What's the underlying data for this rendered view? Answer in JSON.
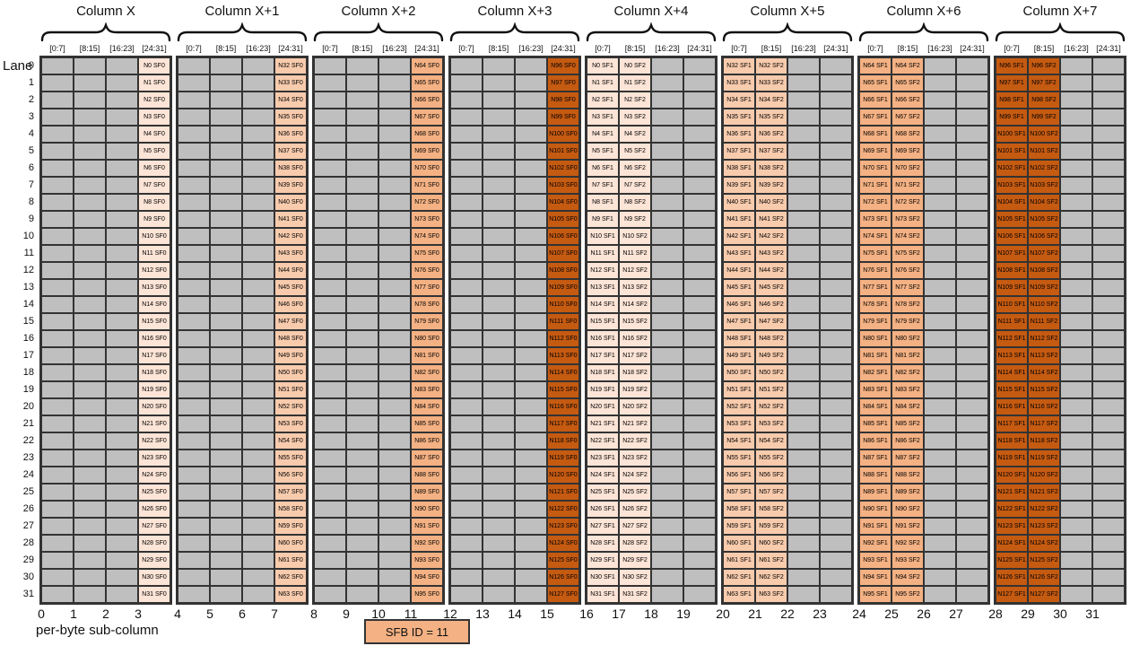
{
  "palette": {
    "cell_gray": "#BFBFBF",
    "border": "#333333",
    "tints": [
      "#FCE4D6",
      "#F8CBAD",
      "#F4B183",
      "#C55A11"
    ]
  },
  "lane_axis": {
    "label": "Lane",
    "values": [
      0,
      1,
      2,
      3,
      4,
      5,
      6,
      7,
      8,
      9,
      10,
      11,
      12,
      13,
      14,
      15,
      16,
      17,
      18,
      19,
      20,
      21,
      22,
      23,
      24,
      25,
      26,
      27,
      28,
      29,
      30,
      31
    ]
  },
  "bottom_axis": {
    "label": "per-byte sub-column",
    "values": [
      0,
      1,
      2,
      3,
      4,
      5,
      6,
      7,
      8,
      9,
      10,
      11,
      12,
      13,
      14,
      15,
      16,
      17,
      18,
      19,
      20,
      21,
      22,
      23,
      24,
      25,
      26,
      27,
      28,
      29,
      30,
      31
    ]
  },
  "legend": {
    "label": "SFB ID = 11",
    "tint": 2
  },
  "groups": [
    {
      "label": "Column X",
      "tint": 0,
      "subcols": [
        "[0:7]",
        "[8:15]",
        "[16:23]",
        "[24:31]"
      ],
      "filled": [
        {
          "subcol": 3,
          "cells": [
            "N0 SF0",
            "N1 SF0",
            "N2 SF0",
            "N3 SF0",
            "N4 SF0",
            "N5 SF0",
            "N6 SF0",
            "N7 SF0",
            "N8 SF0",
            "N9 SF0",
            "N10 SF0",
            "N11 SF0",
            "N12 SF0",
            "N13 SF0",
            "N14 SF0",
            "N15 SF0",
            "N16 SF0",
            "N17 SF0",
            "N18 SF0",
            "N19 SF0",
            "N20 SF0",
            "N21 SF0",
            "N22 SF0",
            "N23 SF0",
            "N24 SF0",
            "N25 SF0",
            "N26 SF0",
            "N27 SF0",
            "N28 SF0",
            "N29 SF0",
            "N30 SF0",
            "N31 SF0"
          ]
        }
      ]
    },
    {
      "label": "Column X+1",
      "tint": 1,
      "subcols": [
        "[0:7]",
        "[8:15]",
        "[16:23]",
        "[24:31]"
      ],
      "filled": [
        {
          "subcol": 3,
          "cells": [
            "N32 SF0",
            "N33 SF0",
            "N34 SF0",
            "N35 SF0",
            "N36 SF0",
            "N37 SF0",
            "N38 SF0",
            "N39 SF0",
            "N40 SF0",
            "N41 SF0",
            "N42 SF0",
            "N43 SF0",
            "N44 SF0",
            "N45 SF0",
            "N46 SF0",
            "N47 SF0",
            "N48 SF0",
            "N49 SF0",
            "N50 SF0",
            "N51 SF0",
            "N52 SF0",
            "N53 SF0",
            "N54 SF0",
            "N55 SF0",
            "N56 SF0",
            "N57 SF0",
            "N58 SF0",
            "N59 SF0",
            "N60 SF0",
            "N61 SF0",
            "N62 SF0",
            "N63 SF0"
          ]
        }
      ]
    },
    {
      "label": "Column X+2",
      "tint": 2,
      "subcols": [
        "[0:7]",
        "[8:15]",
        "[16:23]",
        "[24:31]"
      ],
      "filled": [
        {
          "subcol": 3,
          "cells": [
            "N64 SF0",
            "N65 SF0",
            "N66 SF0",
            "N67 SF0",
            "N68 SF0",
            "N69 SF0",
            "N70 SF0",
            "N71 SF0",
            "N72 SF0",
            "N73 SF0",
            "N74 SF0",
            "N75 SF0",
            "N76 SF0",
            "N77 SF0",
            "N78 SF0",
            "N79 SF0",
            "N80 SF0",
            "N81 SF0",
            "N82 SF0",
            "N83 SF0",
            "N84 SF0",
            "N85 SF0",
            "N86 SF0",
            "N87 SF0",
            "N88 SF0",
            "N89 SF0",
            "N90 SF0",
            "N91 SF0",
            "N92 SF0",
            "N93 SF0",
            "N94 SF0",
            "N95 SF0"
          ]
        }
      ]
    },
    {
      "label": "Column X+3",
      "tint": 3,
      "subcols": [
        "[0:7]",
        "[8:15]",
        "[16:23]",
        "[24:31]"
      ],
      "filled": [
        {
          "subcol": 3,
          "cells": [
            "N96 SF0",
            "N97 SF0",
            "N98 SF0",
            "N99 SF0",
            "N100 SF0",
            "N101 SF0",
            "N102 SF0",
            "N103 SF0",
            "N104 SF0",
            "N105 SF0",
            "N106 SF0",
            "N107 SF0",
            "N108 SF0",
            "N109 SF0",
            "N110 SF0",
            "N111 SF0",
            "N112 SF0",
            "N113 SF0",
            "N114 SF0",
            "N115 SF0",
            "N116 SF0",
            "N117 SF0",
            "N118 SF0",
            "N119 SF0",
            "N120 SF0",
            "N121 SF0",
            "N122 SF0",
            "N123 SF0",
            "N124 SF0",
            "N125 SF0",
            "N126 SF0",
            "N127 SF0"
          ]
        }
      ]
    },
    {
      "label": "Column X+4",
      "tint": 0,
      "subcols": [
        "[0:7]",
        "[8:15]",
        "[16:23]",
        "[24:31]"
      ],
      "filled": [
        {
          "subcol": 0,
          "cells": [
            "N0 SF1",
            "N1 SF1",
            "N2 SF1",
            "N3 SF1",
            "N4 SF1",
            "N5 SF1",
            "N6 SF1",
            "N7 SF1",
            "N8 SF1",
            "N9 SF1",
            "N10 SF1",
            "N11 SF1",
            "N12 SF1",
            "N13 SF1",
            "N14 SF1",
            "N15 SF1",
            "N16 SF1",
            "N17 SF1",
            "N18 SF1",
            "N19 SF1",
            "N20 SF1",
            "N21 SF1",
            "N22 SF1",
            "N23 SF1",
            "N24 SF1",
            "N25 SF1",
            "N26 SF1",
            "N27 SF1",
            "N28 SF1",
            "N29 SF1",
            "N30 SF1",
            "N31 SF1"
          ]
        },
        {
          "subcol": 1,
          "cells": [
            "N0 SF2",
            "N1 SF2",
            "N2 SF2",
            "N3 SF2",
            "N4 SF2",
            "N5 SF2",
            "N6 SF2",
            "N7 SF2",
            "N8 SF2",
            "N9 SF2",
            "N10 SF2",
            "N11 SF2",
            "N12 SF2",
            "N13 SF2",
            "N14 SF2",
            "N15 SF2",
            "N16 SF2",
            "N17 SF2",
            "N18 SF2",
            "N19 SF2",
            "N20 SF2",
            "N21 SF2",
            "N22 SF2",
            "N23 SF2",
            "N24 SF2",
            "N25 SF2",
            "N26 SF2",
            "N27 SF2",
            "N28 SF2",
            "N29 SF2",
            "N30 SF2",
            "N31 SF2"
          ]
        }
      ]
    },
    {
      "label": "Column X+5",
      "tint": 1,
      "subcols": [
        "[0:7]",
        "[8:15]",
        "[16:23]",
        "[24:31]"
      ],
      "filled": [
        {
          "subcol": 0,
          "cells": [
            "N32 SF1",
            "N33 SF1",
            "N34 SF1",
            "N35 SF1",
            "N36 SF1",
            "N37 SF1",
            "N38 SF1",
            "N39 SF1",
            "N40 SF1",
            "N41 SF1",
            "N42 SF1",
            "N43 SF1",
            "N44 SF1",
            "N45 SF1",
            "N46 SF1",
            "N47 SF1",
            "N48 SF1",
            "N49 SF1",
            "N50 SF1",
            "N51 SF1",
            "N52 SF1",
            "N53 SF1",
            "N54 SF1",
            "N55 SF1",
            "N56 SF1",
            "N57 SF1",
            "N58 SF1",
            "N59 SF1",
            "N60 SF1",
            "N61 SF1",
            "N62 SF1",
            "N63 SF1"
          ]
        },
        {
          "subcol": 1,
          "cells": [
            "N32 SF2",
            "N33 SF2",
            "N34 SF2",
            "N35 SF2",
            "N36 SF2",
            "N37 SF2",
            "N38 SF2",
            "N39 SF2",
            "N40 SF2",
            "N41 SF2",
            "N42 SF2",
            "N43 SF2",
            "N44 SF2",
            "N45 SF2",
            "N46 SF2",
            "N47 SF2",
            "N48 SF2",
            "N49 SF2",
            "N50 SF2",
            "N51 SF2",
            "N52 SF2",
            "N53 SF2",
            "N54 SF2",
            "N55 SF2",
            "N56 SF2",
            "N57 SF2",
            "N58 SF2",
            "N59 SF2",
            "N60 SF2",
            "N61 SF2",
            "N62 SF2",
            "N63 SF2"
          ]
        }
      ]
    },
    {
      "label": "Column X+6",
      "tint": 2,
      "subcols": [
        "[0:7]",
        "[8:15]",
        "[16:23]",
        "[24:31]"
      ],
      "filled": [
        {
          "subcol": 0,
          "cells": [
            "N64 SF1",
            "N65 SF1",
            "N66 SF1",
            "N67 SF1",
            "N68 SF1",
            "N69 SF1",
            "N70 SF1",
            "N71 SF1",
            "N72 SF1",
            "N73 SF1",
            "N74 SF1",
            "N75 SF1",
            "N76 SF1",
            "N77 SF1",
            "N78 SF1",
            "N79 SF1",
            "N80 SF1",
            "N81 SF1",
            "N82 SF1",
            "N83 SF1",
            "N84 SF1",
            "N85 SF1",
            "N86 SF1",
            "N87 SF1",
            "N88 SF1",
            "N89 SF1",
            "N90 SF1",
            "N91 SF1",
            "N92 SF1",
            "N93 SF1",
            "N94 SF1",
            "N95 SF1"
          ]
        },
        {
          "subcol": 1,
          "cells": [
            "N64 SF2",
            "N65 SF2",
            "N66 SF2",
            "N67 SF2",
            "N68 SF2",
            "N69 SF2",
            "N70 SF2",
            "N71 SF2",
            "N72 SF2",
            "N73 SF2",
            "N74 SF2",
            "N75 SF2",
            "N76 SF2",
            "N77 SF2",
            "N78 SF2",
            "N79 SF2",
            "N80 SF2",
            "N81 SF2",
            "N82 SF2",
            "N83 SF2",
            "N84 SF2",
            "N85 SF2",
            "N86 SF2",
            "N87 SF2",
            "N88 SF2",
            "N89 SF2",
            "N90 SF2",
            "N91 SF2",
            "N92 SF2",
            "N93 SF2",
            "N94 SF2",
            "N95 SF2"
          ]
        }
      ]
    },
    {
      "label": "Column X+7",
      "tint": 3,
      "subcols": [
        "[0:7]",
        "[8:15]",
        "[16:23]",
        "[24:31]"
      ],
      "filled": [
        {
          "subcol": 0,
          "cells": [
            "N96 SF1",
            "N97 SF1",
            "N98 SF1",
            "N99 SF1",
            "N100 SF1",
            "N101 SF1",
            "N102 SF1",
            "N103 SF1",
            "N104 SF1",
            "N105 SF1",
            "N106 SF1",
            "N107 SF1",
            "N108 SF1",
            "N109 SF1",
            "N110 SF1",
            "N111 SF1",
            "N112 SF1",
            "N113 SF1",
            "N114 SF1",
            "N115 SF1",
            "N116 SF1",
            "N117 SF1",
            "N118 SF1",
            "N119 SF1",
            "N120 SF1",
            "N121 SF1",
            "N122 SF1",
            "N123 SF1",
            "N124 SF1",
            "N125 SF1",
            "N126 SF1",
            "N127 SF1"
          ]
        },
        {
          "subcol": 1,
          "cells": [
            "N96 SF2",
            "N97 SF2",
            "N98 SF2",
            "N99 SF2",
            "N100 SF2",
            "N101 SF2",
            "N102 SF2",
            "N103 SF2",
            "N104 SF2",
            "N105 SF2",
            "N106 SF2",
            "N107 SF2",
            "N108 SF2",
            "N109 SF2",
            "N110 SF2",
            "N111 SF2",
            "N112 SF2",
            "N113 SF2",
            "N114 SF2",
            "N115 SF2",
            "N116 SF2",
            "N117 SF2",
            "N118 SF2",
            "N119 SF2",
            "N120 SF2",
            "N121 SF2",
            "N122 SF2",
            "N123 SF2",
            "N124 SF2",
            "N125 SF2",
            "N126 SF2",
            "N127 SF2"
          ]
        }
      ]
    }
  ]
}
